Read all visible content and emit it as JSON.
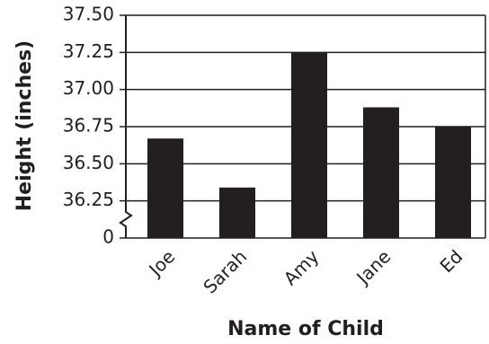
{
  "chart_data": {
    "type": "bar",
    "x_label": "Name of Child",
    "y_label": "Height (inches)",
    "categories": [
      "Joe",
      "Sarah",
      "Amy",
      "Jane",
      "Ed"
    ],
    "values": [
      36.67,
      36.34,
      37.25,
      36.88,
      36.75
    ],
    "color": "#231f20",
    "ylim": [
      0,
      37.5
    ],
    "yticks": [
      0,
      36.25,
      {
        "value": 36.5,
        "label": "36.50"
      },
      36.75,
      {
        "value": 37,
        "label": "37.00"
      },
      37.25,
      {
        "value": 37.5,
        "label": "37.50"
      }
    ],
    "axis_break": true,
    "grid": true
  }
}
